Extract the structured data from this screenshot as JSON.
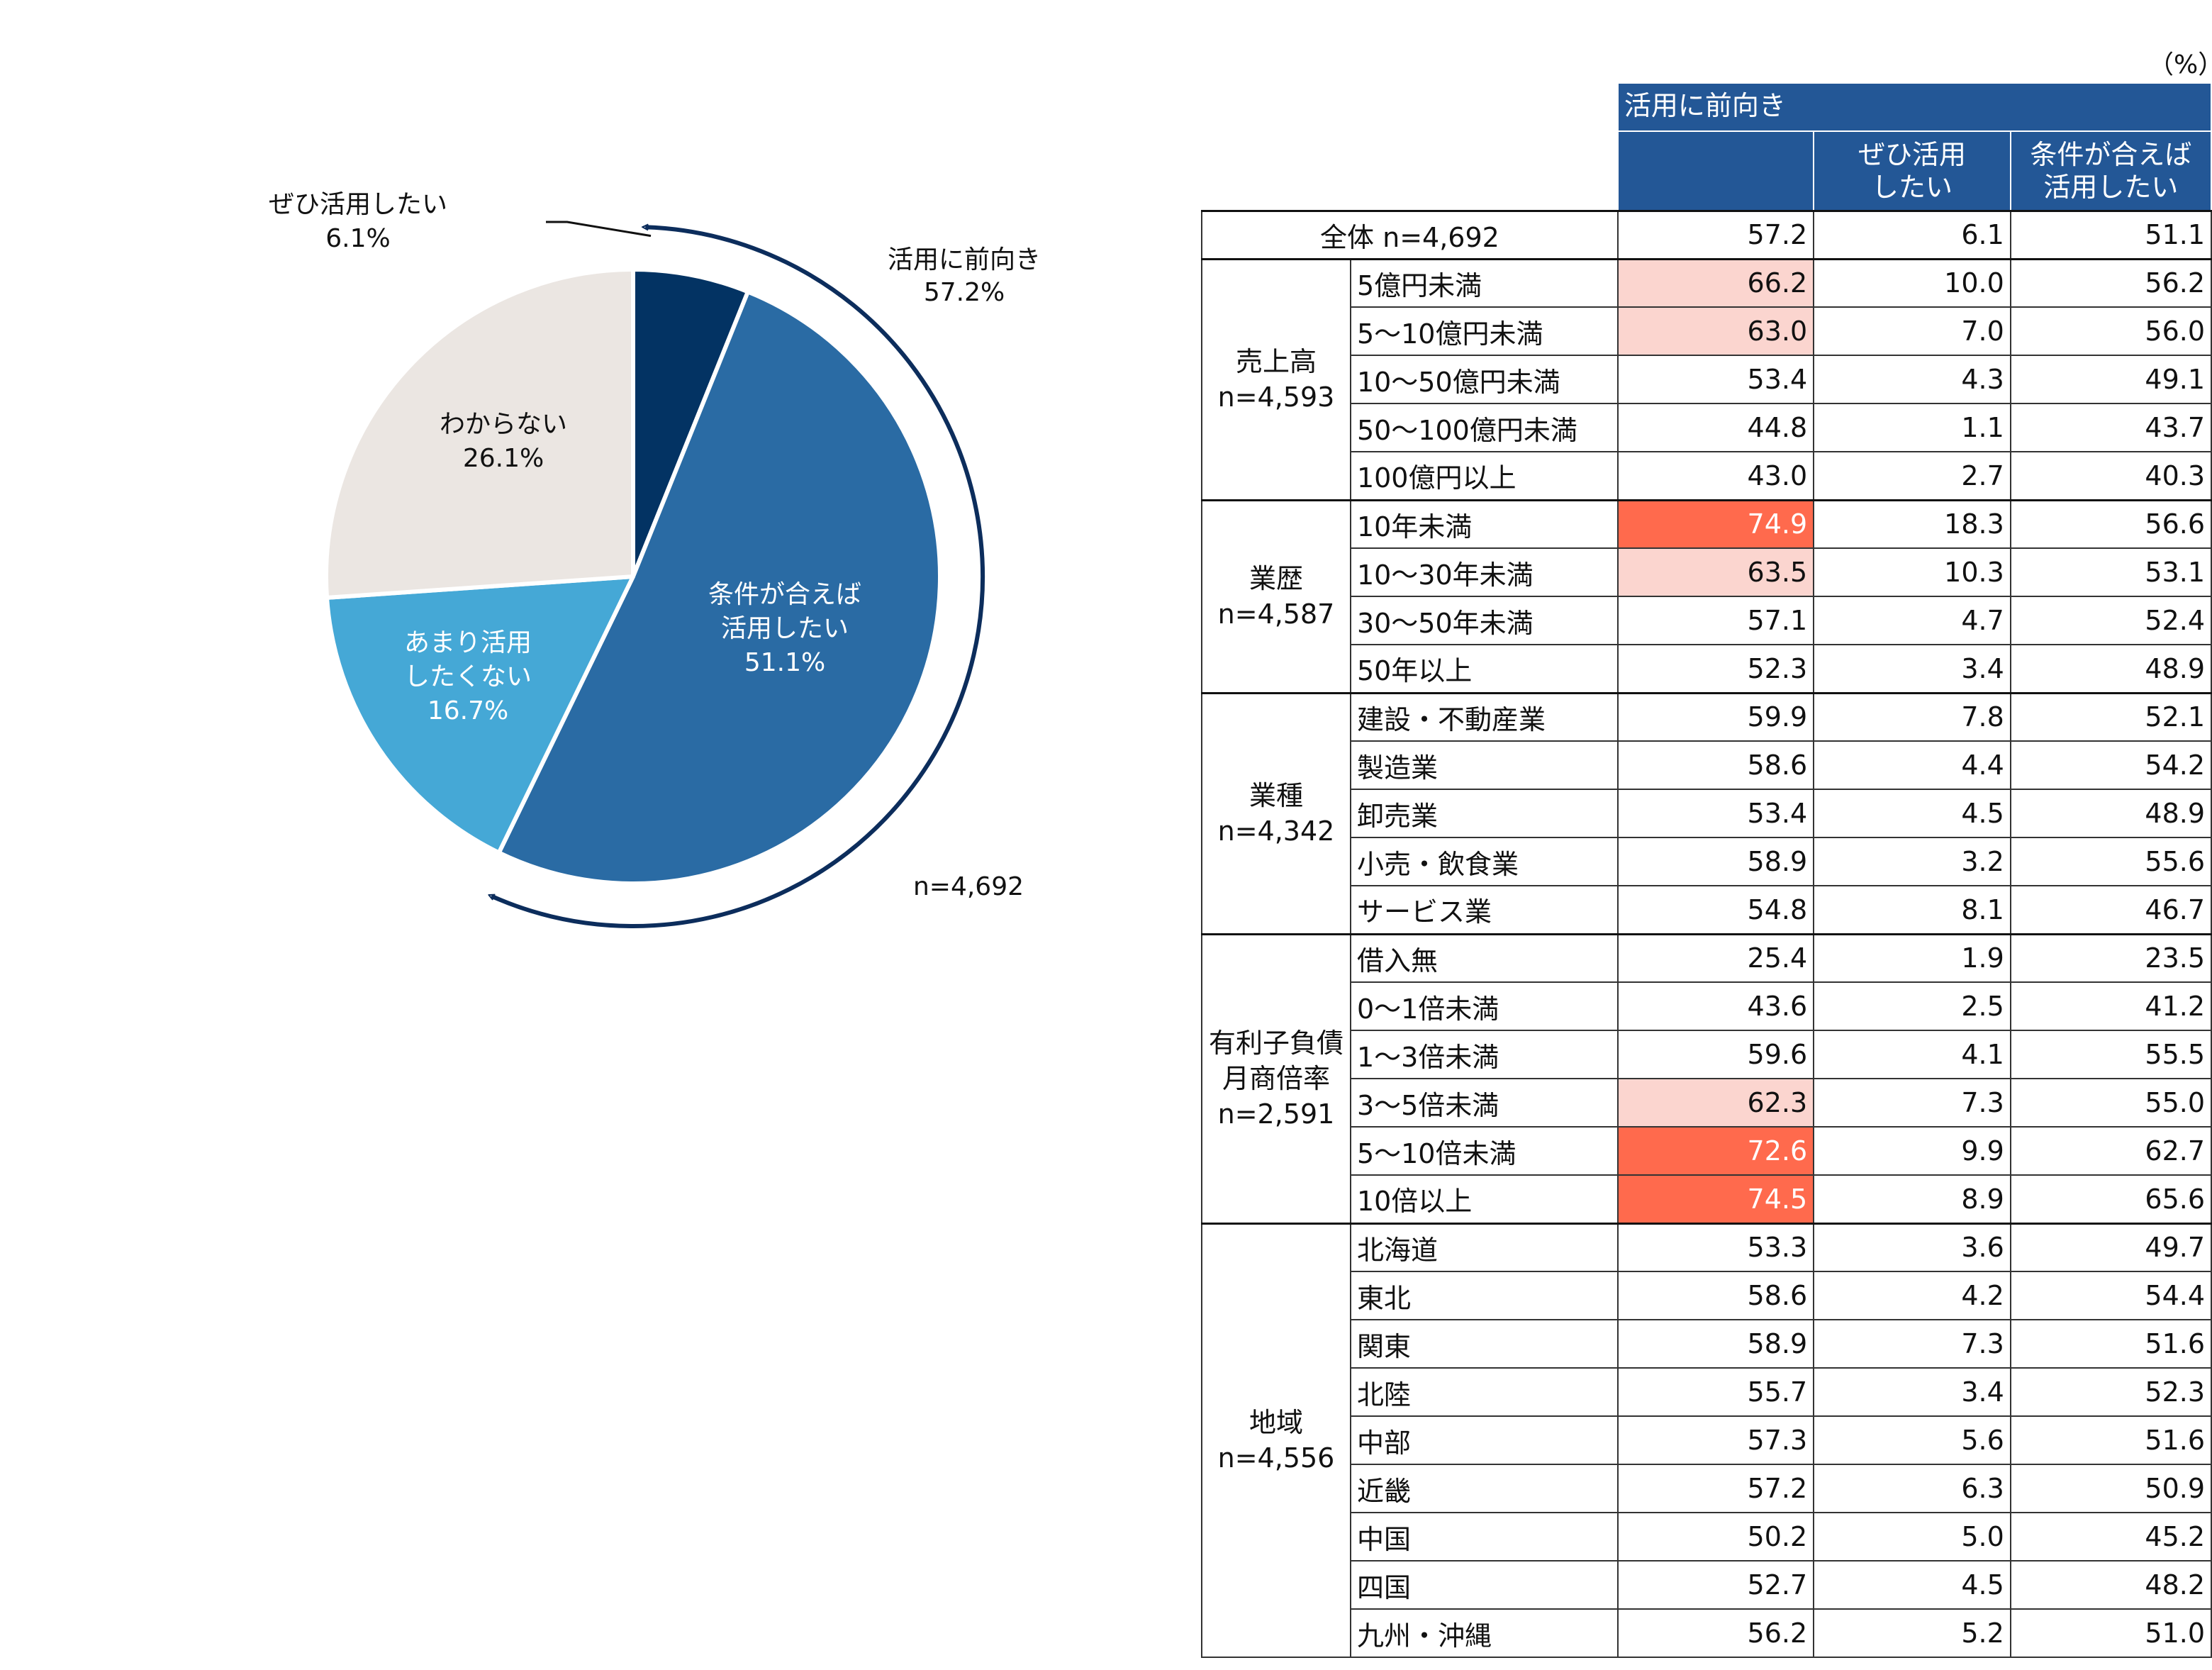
{
  "unit_label": "（%）",
  "chart_data": [
    {
      "type": "pie",
      "start_angle_deg": 0,
      "direction": "clockwise",
      "sample_label": "n=4,692",
      "bracket_label": [
        "活用に前向き",
        "57.2%"
      ],
      "bracket_covers": [
        "ぜひ活用したい",
        "条件が合えば活用したい"
      ],
      "slices": [
        {
          "label": [
            "ぜひ活用したい"
          ],
          "pct_text": "6.1%",
          "value": 6.1,
          "color": "#033363"
        },
        {
          "label": [
            "条件が合えば",
            "活用したい"
          ],
          "pct_text": "51.1%",
          "value": 51.1,
          "color": "#2A6BA4"
        },
        {
          "label": [
            "あまり活用",
            "したくない"
          ],
          "pct_text": "16.7%",
          "value": 16.7,
          "color": "#45A8D6"
        },
        {
          "label": [
            "わからない"
          ],
          "pct_text": "26.1%",
          "value": 26.1,
          "color": "#EBE6E2"
        }
      ]
    },
    {
      "type": "table",
      "header": {
        "group_label": "活用に前向き",
        "sub_cols": [
          [
            "ぜひ活用",
            "したい"
          ],
          [
            "条件が合えば",
            "活用したい"
          ]
        ]
      },
      "total": {
        "label": "全体 n=4,692",
        "values": [
          "57.2",
          "6.1",
          "51.1"
        ]
      },
      "groups": [
        {
          "title": [
            "売上高",
            "n=4,593"
          ],
          "rows": [
            {
              "label": "5億円未満",
              "values": [
                "66.2",
                "10.0",
                "56.2"
              ],
              "highlight": "light"
            },
            {
              "label": "5～10億円未満",
              "values": [
                "63.0",
                "7.0",
                "56.0"
              ],
              "highlight": "light"
            },
            {
              "label": "10～50億円未満",
              "values": [
                "53.4",
                "4.3",
                "49.1"
              ],
              "highlight": ""
            },
            {
              "label": "50～100億円未満",
              "values": [
                "44.8",
                "1.1",
                "43.7"
              ],
              "highlight": ""
            },
            {
              "label": "100億円以上",
              "values": [
                "43.0",
                "2.7",
                "40.3"
              ],
              "highlight": ""
            }
          ]
        },
        {
          "title": [
            "業歴",
            "n=4,587"
          ],
          "rows": [
            {
              "label": "10年未満",
              "values": [
                "74.9",
                "18.3",
                "56.6"
              ],
              "highlight": "strong"
            },
            {
              "label": "10～30年未満",
              "values": [
                "63.5",
                "10.3",
                "53.1"
              ],
              "highlight": "light"
            },
            {
              "label": "30～50年未満",
              "values": [
                "57.1",
                "4.7",
                "52.4"
              ],
              "highlight": ""
            },
            {
              "label": "50年以上",
              "values": [
                "52.3",
                "3.4",
                "48.9"
              ],
              "highlight": ""
            }
          ]
        },
        {
          "title": [
            "業種",
            "n=4,342"
          ],
          "rows": [
            {
              "label": "建設・不動産業",
              "values": [
                "59.9",
                "7.8",
                "52.1"
              ],
              "highlight": ""
            },
            {
              "label": "製造業",
              "values": [
                "58.6",
                "4.4",
                "54.2"
              ],
              "highlight": ""
            },
            {
              "label": "卸売業",
              "values": [
                "53.4",
                "4.5",
                "48.9"
              ],
              "highlight": ""
            },
            {
              "label": "小売・飲食業",
              "values": [
                "58.9",
                "3.2",
                "55.6"
              ],
              "highlight": ""
            },
            {
              "label": "サービス業",
              "values": [
                "54.8",
                "8.1",
                "46.7"
              ],
              "highlight": ""
            }
          ]
        },
        {
          "title": [
            "有利子負債",
            "月商倍率",
            "n=2,591"
          ],
          "rows": [
            {
              "label": "借入無",
              "values": [
                "25.4",
                "1.9",
                "23.5"
              ],
              "highlight": ""
            },
            {
              "label": "0～1倍未満",
              "values": [
                "43.6",
                "2.5",
                "41.2"
              ],
              "highlight": ""
            },
            {
              "label": "1～3倍未満",
              "values": [
                "59.6",
                "4.1",
                "55.5"
              ],
              "highlight": ""
            },
            {
              "label": "3～5倍未満",
              "values": [
                "62.3",
                "7.3",
                "55.0"
              ],
              "highlight": "light"
            },
            {
              "label": "5～10倍未満",
              "values": [
                "72.6",
                "9.9",
                "62.7"
              ],
              "highlight": "strong"
            },
            {
              "label": "10倍以上",
              "values": [
                "74.5",
                "8.9",
                "65.6"
              ],
              "highlight": "strong"
            }
          ]
        },
        {
          "title": [
            "地域",
            "n=4,556"
          ],
          "rows": [
            {
              "label": "北海道",
              "values": [
                "53.3",
                "3.6",
                "49.7"
              ],
              "highlight": ""
            },
            {
              "label": "東北",
              "values": [
                "58.6",
                "4.2",
                "54.4"
              ],
              "highlight": ""
            },
            {
              "label": "関東",
              "values": [
                "58.9",
                "7.3",
                "51.6"
              ],
              "highlight": ""
            },
            {
              "label": "北陸",
              "values": [
                "55.7",
                "3.4",
                "52.3"
              ],
              "highlight": ""
            },
            {
              "label": "中部",
              "values": [
                "57.3",
                "5.6",
                "51.6"
              ],
              "highlight": ""
            },
            {
              "label": "近畿",
              "values": [
                "57.2",
                "6.3",
                "50.9"
              ],
              "highlight": ""
            },
            {
              "label": "中国",
              "values": [
                "50.2",
                "5.0",
                "45.2"
              ],
              "highlight": ""
            },
            {
              "label": "四国",
              "values": [
                "52.7",
                "4.5",
                "48.2"
              ],
              "highlight": ""
            },
            {
              "label": "九州・沖縄",
              "values": [
                "56.2",
                "5.2",
                "51.0"
              ],
              "highlight": ""
            }
          ]
        }
      ]
    }
  ]
}
